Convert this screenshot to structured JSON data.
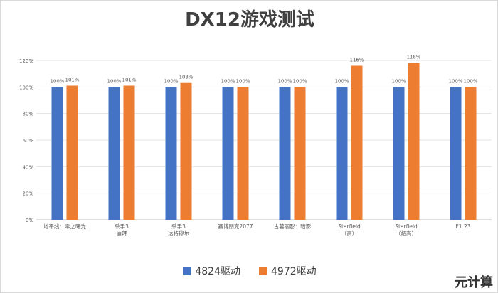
{
  "chart_data": {
    "type": "bar",
    "title": "DX12游戏测试",
    "categories": [
      "地平线：零之曙光",
      "杀手3\n迪拜",
      "杀手3\n达特穆尔",
      "赛博朋克2077",
      "古墓丽影：暗影",
      "Starfield\n（高）",
      "Starfield\n（超高）",
      "F1 23"
    ],
    "series": [
      {
        "name": "4824驱动",
        "color": "#4472c4",
        "values": [
          100,
          100,
          100,
          100,
          100,
          100,
          100,
          100
        ]
      },
      {
        "name": "4972驱动",
        "color": "#ed7d31",
        "values": [
          101,
          101,
          103,
          100,
          100,
          116,
          118,
          100
        ]
      }
    ],
    "yticks": [
      "0%",
      "20%",
      "40%",
      "60%",
      "80%",
      "100%",
      "120%"
    ],
    "ylim": [
      0,
      120
    ],
    "grid": true,
    "legend": "bottom",
    "xlabel": "",
    "ylabel": ""
  },
  "watermark": "元计算"
}
